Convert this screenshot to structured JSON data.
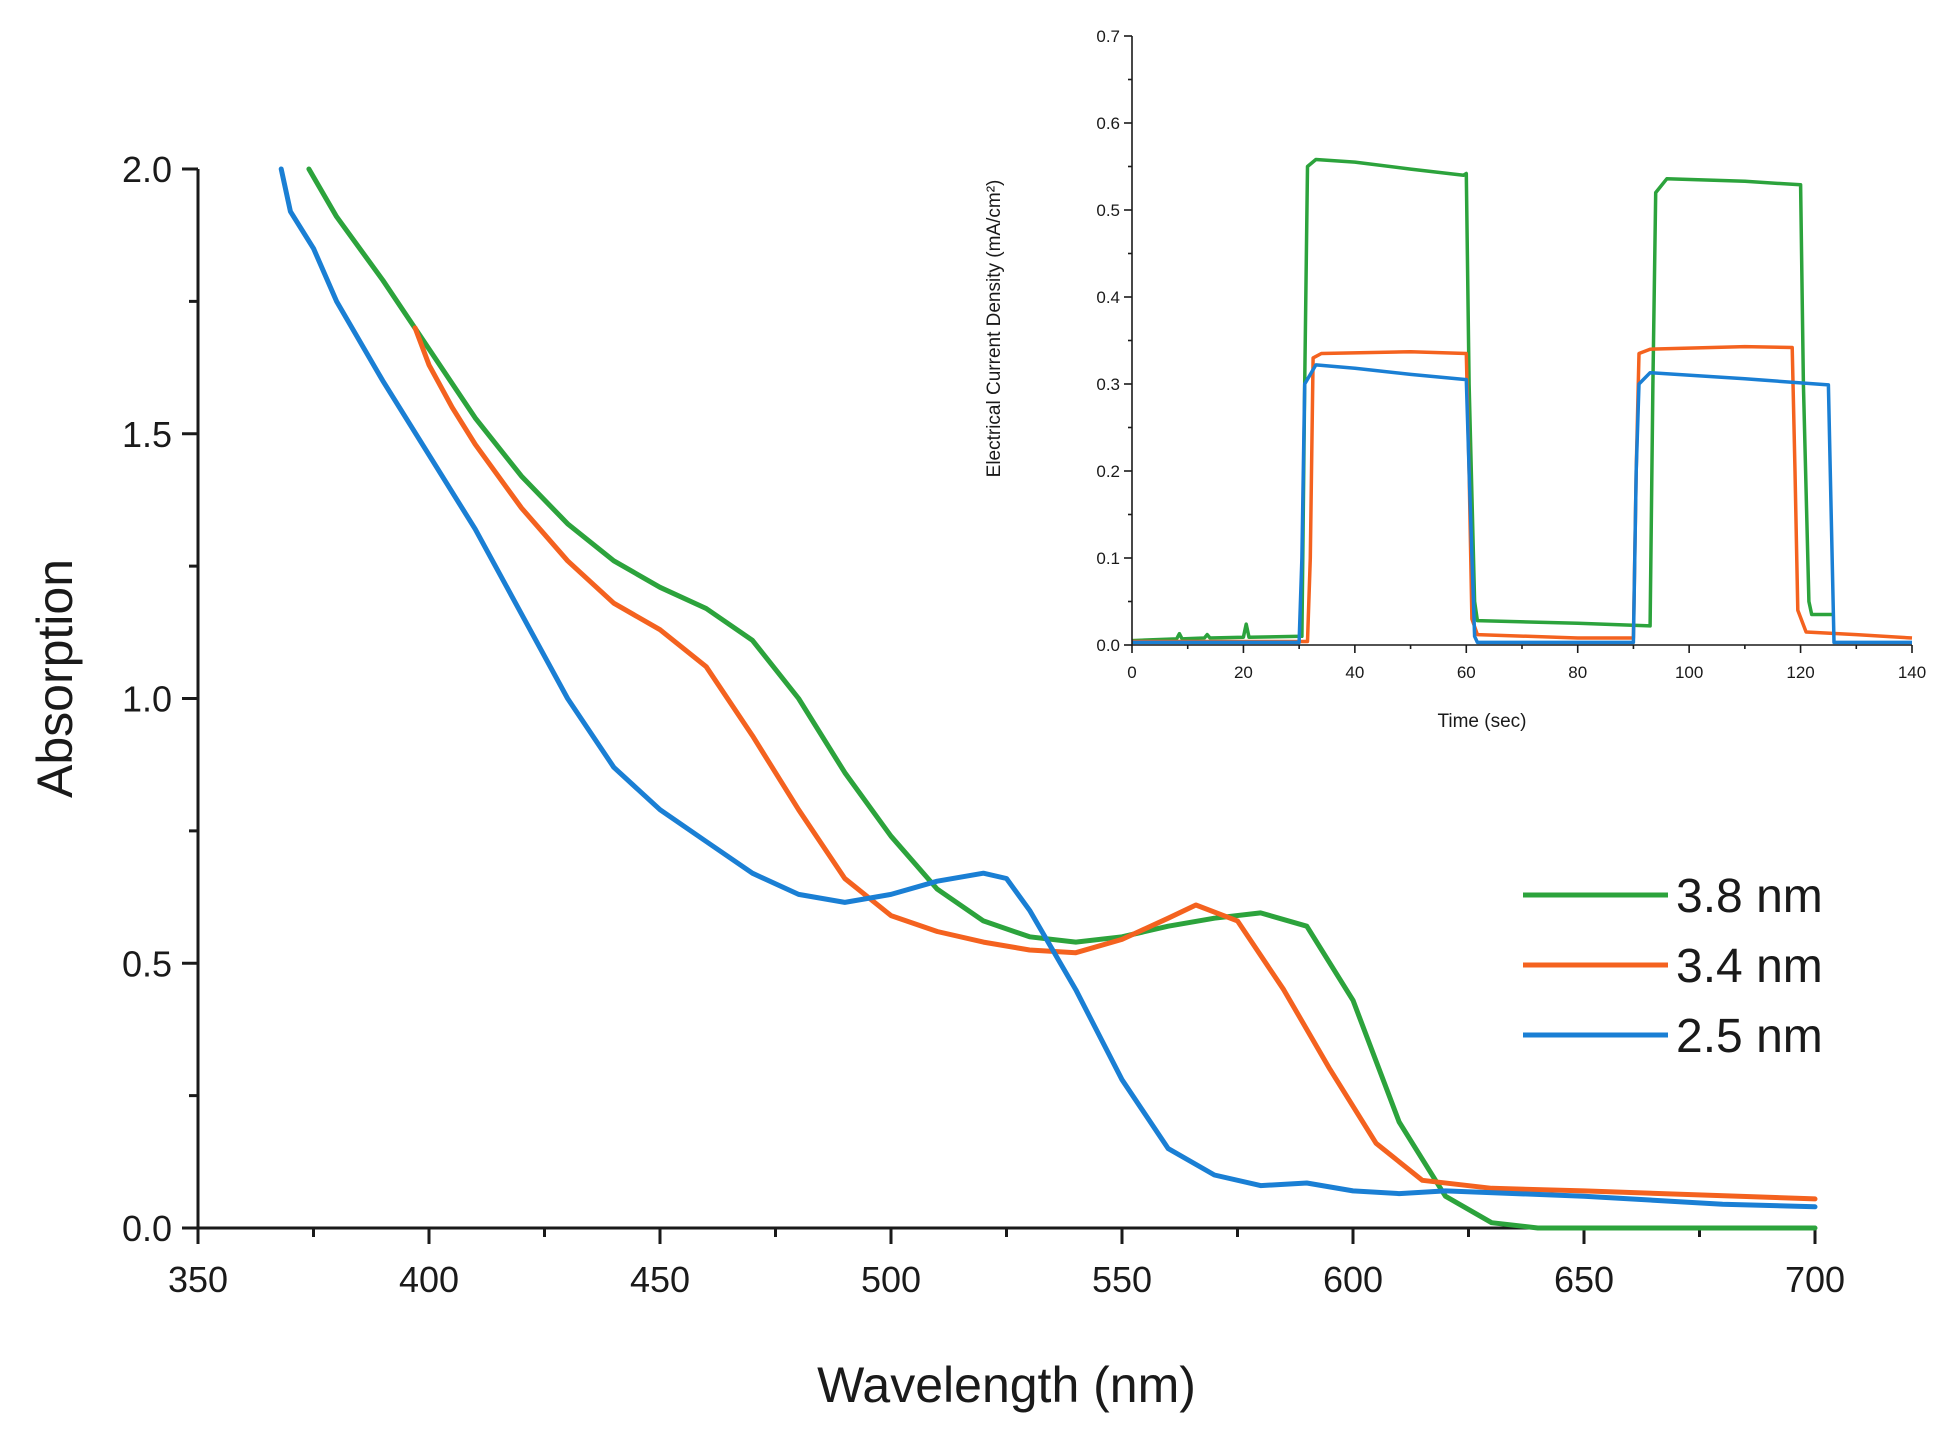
{
  "chart_data": [
    {
      "id": "main",
      "type": "line",
      "title": "",
      "xlabel": "Wavelength (nm)",
      "ylabel": "Absorption",
      "xlim": [
        350,
        700
      ],
      "ylim": [
        0,
        2.0
      ],
      "xticks": [
        350,
        400,
        450,
        500,
        550,
        600,
        650,
        700
      ],
      "yticks": [
        0.0,
        0.5,
        1.0,
        1.5,
        2.0
      ],
      "xtick_labels": [
        "350",
        "400",
        "450",
        "500",
        "550",
        "600",
        "650",
        "700"
      ],
      "ytick_labels": [
        "0.0",
        "0.5",
        "1.0",
        "1.5",
        "2.0"
      ],
      "legend_position": "right-middle",
      "series": [
        {
          "name": "3.8 nm",
          "color": "#2ca33c",
          "x": [
            374,
            380,
            390,
            400,
            410,
            420,
            430,
            440,
            450,
            460,
            470,
            480,
            490,
            500,
            510,
            520,
            530,
            540,
            550,
            560,
            570,
            580,
            590,
            600,
            610,
            620,
            630,
            640,
            650,
            700
          ],
          "y": [
            2.0,
            1.91,
            1.79,
            1.66,
            1.53,
            1.42,
            1.33,
            1.26,
            1.21,
            1.17,
            1.11,
            1.0,
            0.86,
            0.74,
            0.64,
            0.58,
            0.55,
            0.54,
            0.55,
            0.57,
            0.585,
            0.595,
            0.57,
            0.43,
            0.2,
            0.06,
            0.01,
            0.0,
            0.0,
            0.0
          ]
        },
        {
          "name": "3.4 nm",
          "color": "#f4621f",
          "x": [
            397,
            400,
            405,
            410,
            420,
            430,
            440,
            450,
            460,
            470,
            480,
            490,
            500,
            510,
            520,
            530,
            540,
            550,
            560,
            566,
            575,
            585,
            595,
            605,
            615,
            630,
            650,
            700
          ],
          "y": [
            1.7,
            1.63,
            1.55,
            1.48,
            1.36,
            1.26,
            1.18,
            1.13,
            1.06,
            0.93,
            0.79,
            0.66,
            0.59,
            0.56,
            0.54,
            0.525,
            0.52,
            0.545,
            0.585,
            0.61,
            0.58,
            0.45,
            0.3,
            0.16,
            0.09,
            0.075,
            0.07,
            0.055
          ]
        },
        {
          "name": "2.5 nm",
          "color": "#1a7fd4",
          "x": [
            368,
            370,
            375,
            380,
            390,
            400,
            410,
            420,
            430,
            440,
            450,
            460,
            470,
            480,
            490,
            500,
            510,
            520,
            525,
            530,
            540,
            550,
            560,
            570,
            580,
            590,
            600,
            610,
            620,
            650,
            680,
            700
          ],
          "y": [
            2.0,
            1.92,
            1.85,
            1.75,
            1.6,
            1.46,
            1.32,
            1.16,
            1.0,
            0.87,
            0.79,
            0.73,
            0.67,
            0.63,
            0.615,
            0.63,
            0.655,
            0.67,
            0.66,
            0.6,
            0.45,
            0.28,
            0.15,
            0.1,
            0.08,
            0.085,
            0.07,
            0.065,
            0.07,
            0.06,
            0.045,
            0.04
          ]
        }
      ]
    },
    {
      "id": "inset",
      "type": "line",
      "title": "",
      "xlabel": "Time (sec)",
      "ylabel": "Electrical Current Density (mA/cm²)",
      "xlim": [
        0,
        140
      ],
      "ylim": [
        0,
        0.7
      ],
      "xticks": [
        0,
        20,
        40,
        60,
        80,
        100,
        120,
        140
      ],
      "yticks": [
        0.0,
        0.1,
        0.2,
        0.3,
        0.4,
        0.5,
        0.6,
        0.7
      ],
      "xtick_labels": [
        "0",
        "20",
        "40",
        "60",
        "80",
        "100",
        "120",
        "140"
      ],
      "ytick_labels": [
        "0.0",
        "0.1",
        "0.2",
        "0.3",
        "0.4",
        "0.5",
        "0.6",
        "0.7"
      ],
      "series": [
        {
          "name": "3.8 nm",
          "color": "#2ca33c",
          "x": [
            0,
            8,
            8.5,
            9,
            13,
            13.5,
            14,
            20,
            20.5,
            21,
            30.5,
            31,
            31.5,
            33,
            40,
            50,
            59.5,
            60,
            60.5,
            61.5,
            62,
            80,
            93,
            93.5,
            94,
            96,
            110,
            120,
            120.5,
            121.5,
            122,
            124,
            126
          ],
          "y": [
            0.005,
            0.007,
            0.013,
            0.007,
            0.008,
            0.012,
            0.008,
            0.009,
            0.024,
            0.009,
            0.01,
            0.3,
            0.55,
            0.558,
            0.555,
            0.547,
            0.54,
            0.542,
            0.3,
            0.05,
            0.028,
            0.025,
            0.022,
            0.3,
            0.52,
            0.536,
            0.533,
            0.529,
            0.3,
            0.05,
            0.035,
            0.035,
            0.035
          ]
        },
        {
          "name": "3.4 nm",
          "color": "#f4621f",
          "x": [
            0,
            31.5,
            32,
            32.5,
            34,
            50,
            60,
            60.5,
            61,
            62,
            80,
            90,
            90.5,
            91,
            93,
            110,
            118.5,
            119,
            119.5,
            121,
            130,
            140
          ],
          "y": [
            0.004,
            0.004,
            0.1,
            0.33,
            0.335,
            0.337,
            0.335,
            0.2,
            0.03,
            0.012,
            0.008,
            0.008,
            0.2,
            0.335,
            0.34,
            0.343,
            0.342,
            0.2,
            0.04,
            0.015,
            0.012,
            0.008
          ]
        },
        {
          "name": "2.5 nm",
          "color": "#1a7fd4",
          "x": [
            0,
            30,
            30.5,
            31,
            33,
            40,
            50,
            60,
            60.5,
            61.5,
            62,
            80,
            90,
            90.5,
            91,
            93,
            110,
            125,
            125.5,
            126,
            128,
            140
          ],
          "y": [
            0.003,
            0.003,
            0.1,
            0.3,
            0.322,
            0.318,
            0.311,
            0.305,
            0.2,
            0.01,
            0.003,
            0.003,
            0.003,
            0.2,
            0.3,
            0.313,
            0.306,
            0.299,
            0.15,
            0.003,
            0.003,
            0.003
          ]
        }
      ]
    }
  ]
}
